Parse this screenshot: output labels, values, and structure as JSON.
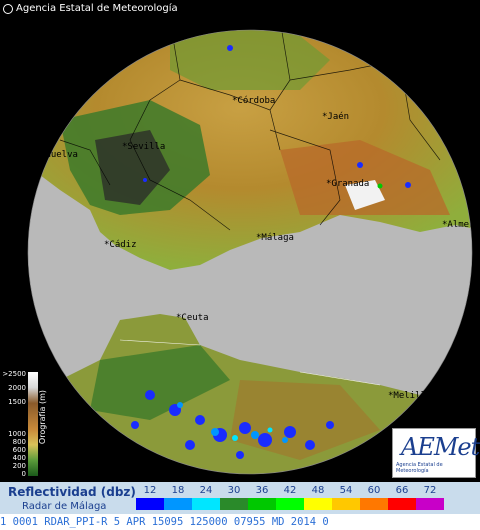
{
  "header": {
    "agency": "Agencia Estatal de Meteorología"
  },
  "cities": [
    {
      "name": "Córdoba",
      "key": "cordoba"
    },
    {
      "name": "Jaén",
      "key": "jaen"
    },
    {
      "name": "Huelva",
      "key": "huelva"
    },
    {
      "name": "Sevilla",
      "key": "sevilla"
    },
    {
      "name": "Granada",
      "key": "granada"
    },
    {
      "name": "Cádiz",
      "key": "cadiz"
    },
    {
      "name": "Málaga",
      "key": "malaga"
    },
    {
      "name": "Almería",
      "key": "almeria"
    },
    {
      "name": "Ceuta",
      "key": "ceuta"
    },
    {
      "name": "Melilla",
      "key": "melilla"
    }
  ],
  "orography": {
    "title": "Orografía (m)",
    "ticks": [
      ">2500",
      "2000",
      "1500",
      "1000",
      "800",
      "600",
      "400",
      "200",
      "0"
    ]
  },
  "logo": {
    "text": "AEMet",
    "subtitle": "Agencia Estatal de Meteorología"
  },
  "legend": {
    "title": "Reflectividad (dbz)",
    "subtitle": "Radar de Málaga",
    "steps": [
      {
        "value": "12",
        "color": "#0000ff"
      },
      {
        "value": "18",
        "color": "#0096ff"
      },
      {
        "value": "24",
        "color": "#00e6ff"
      },
      {
        "value": "30",
        "color": "#2a8a2a"
      },
      {
        "value": "36",
        "color": "#00c800"
      },
      {
        "value": "42",
        "color": "#00ff00"
      },
      {
        "value": "48",
        "color": "#ffff00"
      },
      {
        "value": "54",
        "color": "#ffc800"
      },
      {
        "value": "60",
        "color": "#ff7800"
      },
      {
        "value": "66",
        "color": "#ff0000"
      },
      {
        "value": "72",
        "color": "#c800c8"
      }
    ]
  },
  "status": {
    "text": " 1 0001 RDAR_PPI-R   5 APR 15095 125000 07955 MD 2014 0"
  }
}
